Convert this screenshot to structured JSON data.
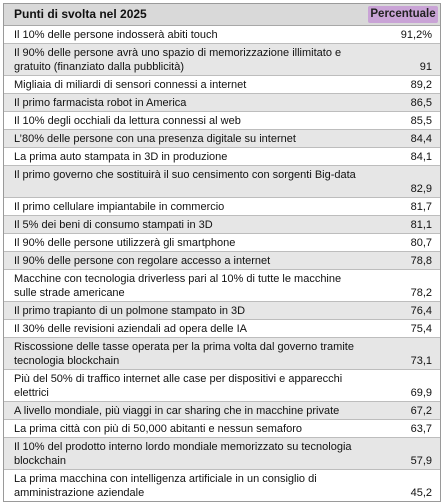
{
  "table": {
    "header": {
      "col1": "Punti di svolta nel 2025",
      "col2": "Percentuale"
    },
    "rows": [
      {
        "label": "Il 10% delle persone indosserà abiti touch",
        "value": "91,2%"
      },
      {
        "label": "Il 90% delle persone avrà uno spazio di memorizzazione illimitato e gratuito (finanziato dalla pubblicità)",
        "value": "91"
      },
      {
        "label": "Migliaia di miliardi di sensori connessi a internet",
        "value": "89,2"
      },
      {
        "label": "Il primo farmacista robot in America",
        "value": "86,5"
      },
      {
        "label": "Il 10% degli occhiali da lettura connessi al web",
        "value": "85,5"
      },
      {
        "label": "L’80% delle persone con una presenza digitale su internet",
        "value": "84,4"
      },
      {
        "label": "La prima auto stampata in 3D in produzione",
        "value": "84,1"
      },
      {
        "label": "Il primo governo che sostituirà il suo censimento con sorgenti Big-data",
        "value": "82,9"
      },
      {
        "label": "Il primo cellulare impiantabile in commercio",
        "value": "81,7"
      },
      {
        "label": "Il 5% dei beni di consumo stampati in 3D",
        "value": "81,1"
      },
      {
        "label": "Il 90% delle persone utilizzerà gli smartphone",
        "value": "80,7"
      },
      {
        "label": "Il 90% delle persone con regolare accesso a internet",
        "value": "78,8"
      },
      {
        "label": "Macchine con tecnologia driverless pari al 10% di tutte le macchine sulle strade americane",
        "value": "78,2"
      },
      {
        "label": "Il primo trapianto di un polmone stampato in 3D",
        "value": "76,4"
      },
      {
        "label": "Il 30% delle revisioni aziendali ad opera delle IA",
        "value": "75,4"
      },
      {
        "label": "Riscossione delle tasse operata per la prima volta dal governo tramite tecnologia blockchain",
        "value": "73,1"
      },
      {
        "label": "Più del 50% di traffico internet alle case per dispositivi e apparecchi elettrici",
        "value": "69,9"
      },
      {
        "label": "A livello mondiale, più viaggi in car sharing che in macchine private",
        "value": "67,2"
      },
      {
        "label": "La prima città con più di 50,000 abitanti e nessun semaforo",
        "value": "63,7"
      },
      {
        "label": "Il 10% del prodotto interno lordo mondiale memorizzato su tecnologia blockchain",
        "value": "57,9"
      },
      {
        "label": "La prima macchina con intelligenza artificiale in un consiglio di amministrazione aziendale",
        "value": "45,2"
      }
    ]
  }
}
